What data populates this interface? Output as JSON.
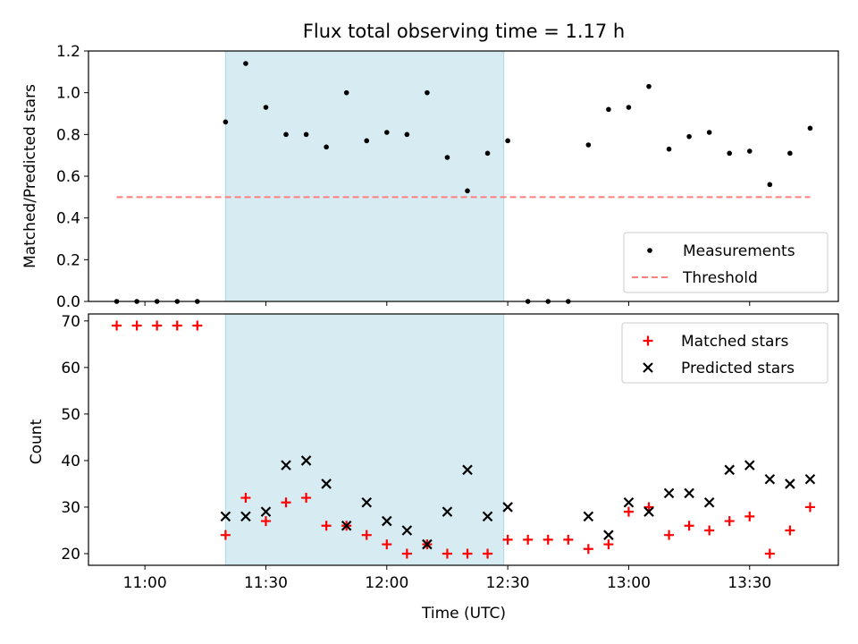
{
  "chart_data": [
    {
      "type": "scatter",
      "title": "Flux total observing time = 1.17 h",
      "xlabel": "",
      "ylabel": "Matched/Predicted stars",
      "ylim": [
        0,
        1.2
      ],
      "yticks": [
        "0.0",
        "0.2",
        "0.4",
        "0.6",
        "0.8",
        "1.0",
        "1.2"
      ],
      "shaded_span": {
        "start": "11:20",
        "end": "12:29",
        "color": "#add8e6"
      },
      "threshold": {
        "name": "Threshold",
        "value": 0.5,
        "x_start": "10:53",
        "x_end": "13:45",
        "color": "#ff7f7f",
        "style": "dashed"
      },
      "legend": {
        "placement": "lower-right",
        "entries": [
          "Measurements",
          "Threshold"
        ]
      },
      "series": [
        {
          "name": "Measurements",
          "marker": "dot",
          "color": "#000000",
          "points": [
            [
              "10:53",
              0.0
            ],
            [
              "10:58",
              0.0
            ],
            [
              "11:03",
              0.0
            ],
            [
              "11:08",
              0.0
            ],
            [
              "11:13",
              0.0
            ],
            [
              "11:20",
              0.86
            ],
            [
              "11:25",
              1.14
            ],
            [
              "11:30",
              0.93
            ],
            [
              "11:35",
              0.8
            ],
            [
              "11:40",
              0.8
            ],
            [
              "11:45",
              0.74
            ],
            [
              "11:50",
              1.0
            ],
            [
              "11:55",
              0.77
            ],
            [
              "12:00",
              0.81
            ],
            [
              "12:05",
              0.8
            ],
            [
              "12:10",
              1.0
            ],
            [
              "12:15",
              0.69
            ],
            [
              "12:20",
              0.53
            ],
            [
              "12:25",
              0.71
            ],
            [
              "12:30",
              0.77
            ],
            [
              "12:35",
              0.0
            ],
            [
              "12:40",
              0.0
            ],
            [
              "12:45",
              0.0
            ],
            [
              "12:50",
              0.75
            ],
            [
              "12:55",
              0.92
            ],
            [
              "13:00",
              0.93
            ],
            [
              "13:05",
              1.03
            ],
            [
              "13:10",
              0.73
            ],
            [
              "13:15",
              0.79
            ],
            [
              "13:20",
              0.81
            ],
            [
              "13:25",
              0.71
            ],
            [
              "13:30",
              0.72
            ],
            [
              "13:35",
              0.56
            ],
            [
              "13:40",
              0.71
            ],
            [
              "13:45",
              0.83
            ]
          ]
        }
      ]
    },
    {
      "type": "scatter",
      "title": "",
      "xlabel": "Time (UTC)",
      "ylabel": "Count",
      "ylim": [
        17.5,
        71.5
      ],
      "yticks": [
        "20",
        "30",
        "40",
        "50",
        "60",
        "70"
      ],
      "xlim": [
        "10:46",
        "13:52"
      ],
      "xticks": [
        "11:00",
        "11:30",
        "12:00",
        "12:30",
        "13:00",
        "13:30"
      ],
      "shaded_span": {
        "start": "11:20",
        "end": "12:29",
        "color": "#add8e6"
      },
      "legend": {
        "placement": "upper-right",
        "entries": [
          "Matched stars",
          "Predicted stars"
        ]
      },
      "series": [
        {
          "name": "Matched stars",
          "marker": "plus",
          "color": "#ff0000",
          "points": [
            [
              "10:53",
              69
            ],
            [
              "10:58",
              69
            ],
            [
              "11:03",
              69
            ],
            [
              "11:08",
              69
            ],
            [
              "11:13",
              69
            ],
            [
              "11:20",
              24
            ],
            [
              "11:25",
              32
            ],
            [
              "11:30",
              27
            ],
            [
              "11:35",
              31
            ],
            [
              "11:40",
              32
            ],
            [
              "11:45",
              26
            ],
            [
              "11:50",
              26
            ],
            [
              "11:55",
              24
            ],
            [
              "12:00",
              22
            ],
            [
              "12:05",
              20
            ],
            [
              "12:10",
              22
            ],
            [
              "12:15",
              20
            ],
            [
              "12:20",
              20
            ],
            [
              "12:25",
              20
            ],
            [
              "12:30",
              23
            ],
            [
              "12:35",
              23
            ],
            [
              "12:40",
              23
            ],
            [
              "12:45",
              23
            ],
            [
              "12:50",
              21
            ],
            [
              "12:55",
              22
            ],
            [
              "13:00",
              29
            ],
            [
              "13:05",
              30
            ],
            [
              "13:10",
              24
            ],
            [
              "13:15",
              26
            ],
            [
              "13:20",
              25
            ],
            [
              "13:25",
              27
            ],
            [
              "13:30",
              28
            ],
            [
              "13:35",
              20
            ],
            [
              "13:40",
              25
            ],
            [
              "13:45",
              30
            ]
          ]
        },
        {
          "name": "Predicted stars",
          "marker": "x",
          "color": "#000000",
          "points": [
            [
              "11:20",
              28
            ],
            [
              "11:25",
              28
            ],
            [
              "11:30",
              29
            ],
            [
              "11:35",
              39
            ],
            [
              "11:40",
              40
            ],
            [
              "11:45",
              35
            ],
            [
              "11:50",
              26
            ],
            [
              "11:55",
              31
            ],
            [
              "12:00",
              27
            ],
            [
              "12:05",
              25
            ],
            [
              "12:10",
              22
            ],
            [
              "12:15",
              29
            ],
            [
              "12:20",
              38
            ],
            [
              "12:25",
              28
            ],
            [
              "12:30",
              30
            ],
            [
              "12:50",
              28
            ],
            [
              "12:55",
              24
            ],
            [
              "13:00",
              31
            ],
            [
              "13:05",
              29
            ],
            [
              "13:10",
              33
            ],
            [
              "13:15",
              33
            ],
            [
              "13:20",
              31
            ],
            [
              "13:25",
              38
            ],
            [
              "13:30",
              39
            ],
            [
              "13:35",
              36
            ],
            [
              "13:40",
              35
            ],
            [
              "13:45",
              36
            ]
          ]
        }
      ]
    }
  ]
}
